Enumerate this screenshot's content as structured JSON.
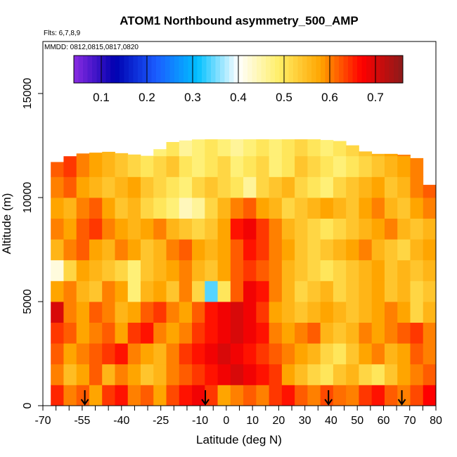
{
  "title": "ATOM1 Northbound asymmetry_500_AMP",
  "flights_label": "Flts: 6,7,8,9",
  "mmdd_label": "MMDD: 0812,0815,0817,0820",
  "chart_data": {
    "type": "heatmap",
    "xlabel": "Latitude (deg N)",
    "ylabel": "Altitude (m)",
    "xlim": [
      -70,
      80
    ],
    "ylim": [
      0,
      17500
    ],
    "x_ticks": [
      -70,
      -55,
      -40,
      -25,
      -10,
      0,
      10,
      20,
      30,
      40,
      50,
      60,
      70,
      80
    ],
    "x_tick_labels": [
      "-70",
      "-55",
      "-40",
      "-25",
      "-10",
      "0",
      "10",
      "20",
      "30",
      "40",
      "50",
      "60",
      "70",
      "80"
    ],
    "x_minor_ticks": [
      -65,
      -60,
      -50,
      -45,
      -35,
      -30,
      -20,
      -15,
      -5,
      5,
      15,
      25,
      35,
      45,
      55,
      65,
      75
    ],
    "y_ticks": [
      0,
      5000,
      10000,
      15000
    ],
    "y_tick_labels": [
      "0",
      "5000",
      "10000",
      "15000"
    ],
    "grid": false,
    "colorbar": {
      "placement": "top-inside",
      "range": [
        0.04,
        0.76
      ],
      "ticks": [
        0.1,
        0.2,
        0.3,
        0.4,
        0.5,
        0.6,
        0.7
      ],
      "tick_labels": [
        "0.1",
        "0.2",
        "0.3",
        "0.4",
        "0.5",
        "0.6",
        "0.7"
      ],
      "colors": [
        "#8a2be2",
        "#0000b0",
        "#1a5cff",
        "#00bfff",
        "#ffffff",
        "#ffee66",
        "#ffa500",
        "#ff0000",
        "#8b1a1a"
      ]
    },
    "arrow_latitudes": [
      -54,
      -8,
      39,
      67
    ],
    "coverage_top_altitude": [
      [
        -67,
        11300
      ],
      [
        -64,
        11800
      ],
      [
        -57,
        12100
      ],
      [
        -45,
        12200
      ],
      [
        -30,
        12000
      ],
      [
        -20,
        12700
      ],
      [
        -10,
        12800
      ],
      [
        0,
        12800
      ],
      [
        20,
        12800
      ],
      [
        35,
        12800
      ],
      [
        45,
        12700
      ],
      [
        55,
        12100
      ],
      [
        65,
        12100
      ],
      [
        72,
        12000
      ],
      [
        77,
        11200
      ],
      [
        80,
        8000
      ]
    ],
    "altitude_bands": [
      {
        "alt": [
          0,
          1000
        ],
        "values": [
          0.65,
          0.6,
          0.62,
          0.58,
          0.64,
          0.66,
          0.6,
          0.62,
          0.58,
          0.63,
          0.66,
          0.68,
          0.64,
          0.58,
          0.6,
          0.62,
          0.6,
          0.64,
          0.66,
          0.62,
          0.6,
          0.63,
          0.61,
          0.6,
          0.64,
          0.66,
          0.62,
          0.6,
          0.63,
          0.67
        ]
      },
      {
        "alt": [
          1000,
          2000
        ],
        "values": [
          0.6,
          0.55,
          0.58,
          0.62,
          0.56,
          0.6,
          0.58,
          0.54,
          0.56,
          0.6,
          0.62,
          0.64,
          0.66,
          0.68,
          0.7,
          0.68,
          0.66,
          0.64,
          0.58,
          0.55,
          0.52,
          0.5,
          0.54,
          0.56,
          0.52,
          0.5,
          0.54,
          0.58,
          0.6,
          0.62
        ]
      },
      {
        "alt": [
          2000,
          3000
        ],
        "values": [
          0.62,
          0.58,
          0.6,
          0.62,
          0.64,
          0.66,
          0.6,
          0.58,
          0.56,
          0.6,
          0.64,
          0.66,
          0.68,
          0.7,
          0.68,
          0.66,
          0.64,
          0.62,
          0.6,
          0.58,
          0.56,
          0.52,
          0.5,
          0.54,
          0.58,
          0.6,
          0.56,
          0.58,
          0.62,
          0.6
        ]
      },
      {
        "alt": [
          3000,
          4000
        ],
        "values": [
          0.64,
          0.62,
          0.58,
          0.6,
          0.62,
          0.58,
          0.64,
          0.66,
          0.6,
          0.58,
          0.6,
          0.64,
          0.66,
          0.68,
          0.7,
          0.68,
          0.66,
          0.6,
          0.58,
          0.6,
          0.62,
          0.56,
          0.54,
          0.56,
          0.6,
          0.58,
          0.6,
          0.62,
          0.64,
          0.6
        ]
      },
      {
        "alt": [
          4000,
          5000
        ],
        "values": [
          0.7,
          0.6,
          0.58,
          0.62,
          0.6,
          0.56,
          0.58,
          0.62,
          0.64,
          0.6,
          0.58,
          0.62,
          0.66,
          0.68,
          0.7,
          0.68,
          0.64,
          0.58,
          0.56,
          0.54,
          0.56,
          0.58,
          0.56,
          0.54,
          0.56,
          0.58,
          0.6,
          0.58,
          0.52,
          0.56
        ]
      },
      {
        "alt": [
          5000,
          6000
        ],
        "values": [
          0.58,
          0.6,
          0.56,
          0.54,
          0.6,
          0.58,
          0.48,
          0.56,
          0.58,
          0.54,
          0.6,
          0.52,
          0.34,
          0.5,
          0.62,
          0.68,
          0.66,
          0.6,
          0.56,
          0.52,
          0.54,
          0.56,
          0.52,
          0.54,
          0.56,
          0.58,
          0.54,
          0.56,
          0.52,
          0.54
        ]
      },
      {
        "alt": [
          6000,
          7000
        ],
        "values": [
          0.42,
          0.52,
          0.58,
          0.56,
          0.54,
          0.52,
          0.48,
          0.54,
          0.56,
          0.58,
          0.6,
          0.56,
          0.54,
          0.58,
          0.62,
          0.64,
          0.62,
          0.6,
          0.56,
          0.54,
          0.52,
          0.5,
          0.52,
          0.54,
          0.56,
          0.58,
          0.54,
          0.56,
          0.54,
          0.56
        ]
      },
      {
        "alt": [
          7000,
          8000
        ],
        "values": [
          0.56,
          0.6,
          0.62,
          0.58,
          0.56,
          0.6,
          0.58,
          0.54,
          0.56,
          0.6,
          0.62,
          0.58,
          0.56,
          0.58,
          0.62,
          0.66,
          0.64,
          0.6,
          0.58,
          0.54,
          0.52,
          0.54,
          0.56,
          0.58,
          0.6,
          0.56,
          0.54,
          0.52,
          0.56,
          0.58
        ]
      },
      {
        "alt": [
          8000,
          9000
        ],
        "values": [
          0.6,
          0.58,
          0.62,
          0.64,
          0.6,
          0.58,
          0.56,
          0.58,
          0.6,
          0.56,
          0.54,
          0.52,
          0.54,
          0.58,
          0.66,
          0.68,
          0.64,
          0.6,
          0.56,
          0.54,
          0.52,
          0.5,
          0.52,
          0.54,
          0.56,
          0.58,
          0.6,
          0.56,
          0.54,
          0.56
        ]
      },
      {
        "alt": [
          9000,
          10000
        ],
        "values": [
          0.58,
          0.56,
          0.6,
          0.62,
          0.58,
          0.54,
          0.56,
          0.52,
          0.5,
          0.48,
          0.44,
          0.46,
          0.52,
          0.56,
          0.6,
          0.62,
          0.58,
          0.56,
          0.52,
          0.54,
          0.56,
          0.58,
          0.56,
          0.54,
          0.58,
          0.6,
          0.56,
          0.54,
          0.58,
          0.6
        ]
      },
      {
        "alt": [
          10000,
          11000
        ],
        "values": [
          0.6,
          0.62,
          0.58,
          0.56,
          0.54,
          0.56,
          0.58,
          0.54,
          0.52,
          0.5,
          0.48,
          0.52,
          0.54,
          0.52,
          0.5,
          0.46,
          0.52,
          0.54,
          0.56,
          0.52,
          0.5,
          0.48,
          0.52,
          0.54,
          0.56,
          0.58,
          0.54,
          0.56,
          0.6,
          0.62
        ]
      },
      {
        "alt": [
          11000,
          12000
        ],
        "values": [
          0.62,
          0.64,
          0.6,
          0.58,
          0.56,
          0.54,
          0.52,
          0.5,
          0.52,
          0.54,
          0.5,
          0.48,
          0.5,
          0.52,
          0.48,
          0.5,
          0.52,
          0.48,
          0.5,
          0.54,
          0.52,
          0.5,
          0.48,
          0.5,
          0.52,
          0.54,
          0.56,
          0.58,
          0.6,
          0.62
        ]
      },
      {
        "alt": [
          12000,
          13000
        ],
        "values": [
          null,
          0.62,
          0.6,
          0.58,
          0.56,
          0.54,
          0.52,
          0.5,
          0.48,
          0.5,
          0.46,
          0.48,
          0.5,
          0.48,
          0.46,
          0.48,
          0.5,
          0.48,
          0.5,
          0.52,
          0.5,
          0.48,
          0.5,
          0.52,
          0.54,
          0.56,
          0.58,
          0.6,
          0.62,
          null
        ]
      }
    ]
  }
}
